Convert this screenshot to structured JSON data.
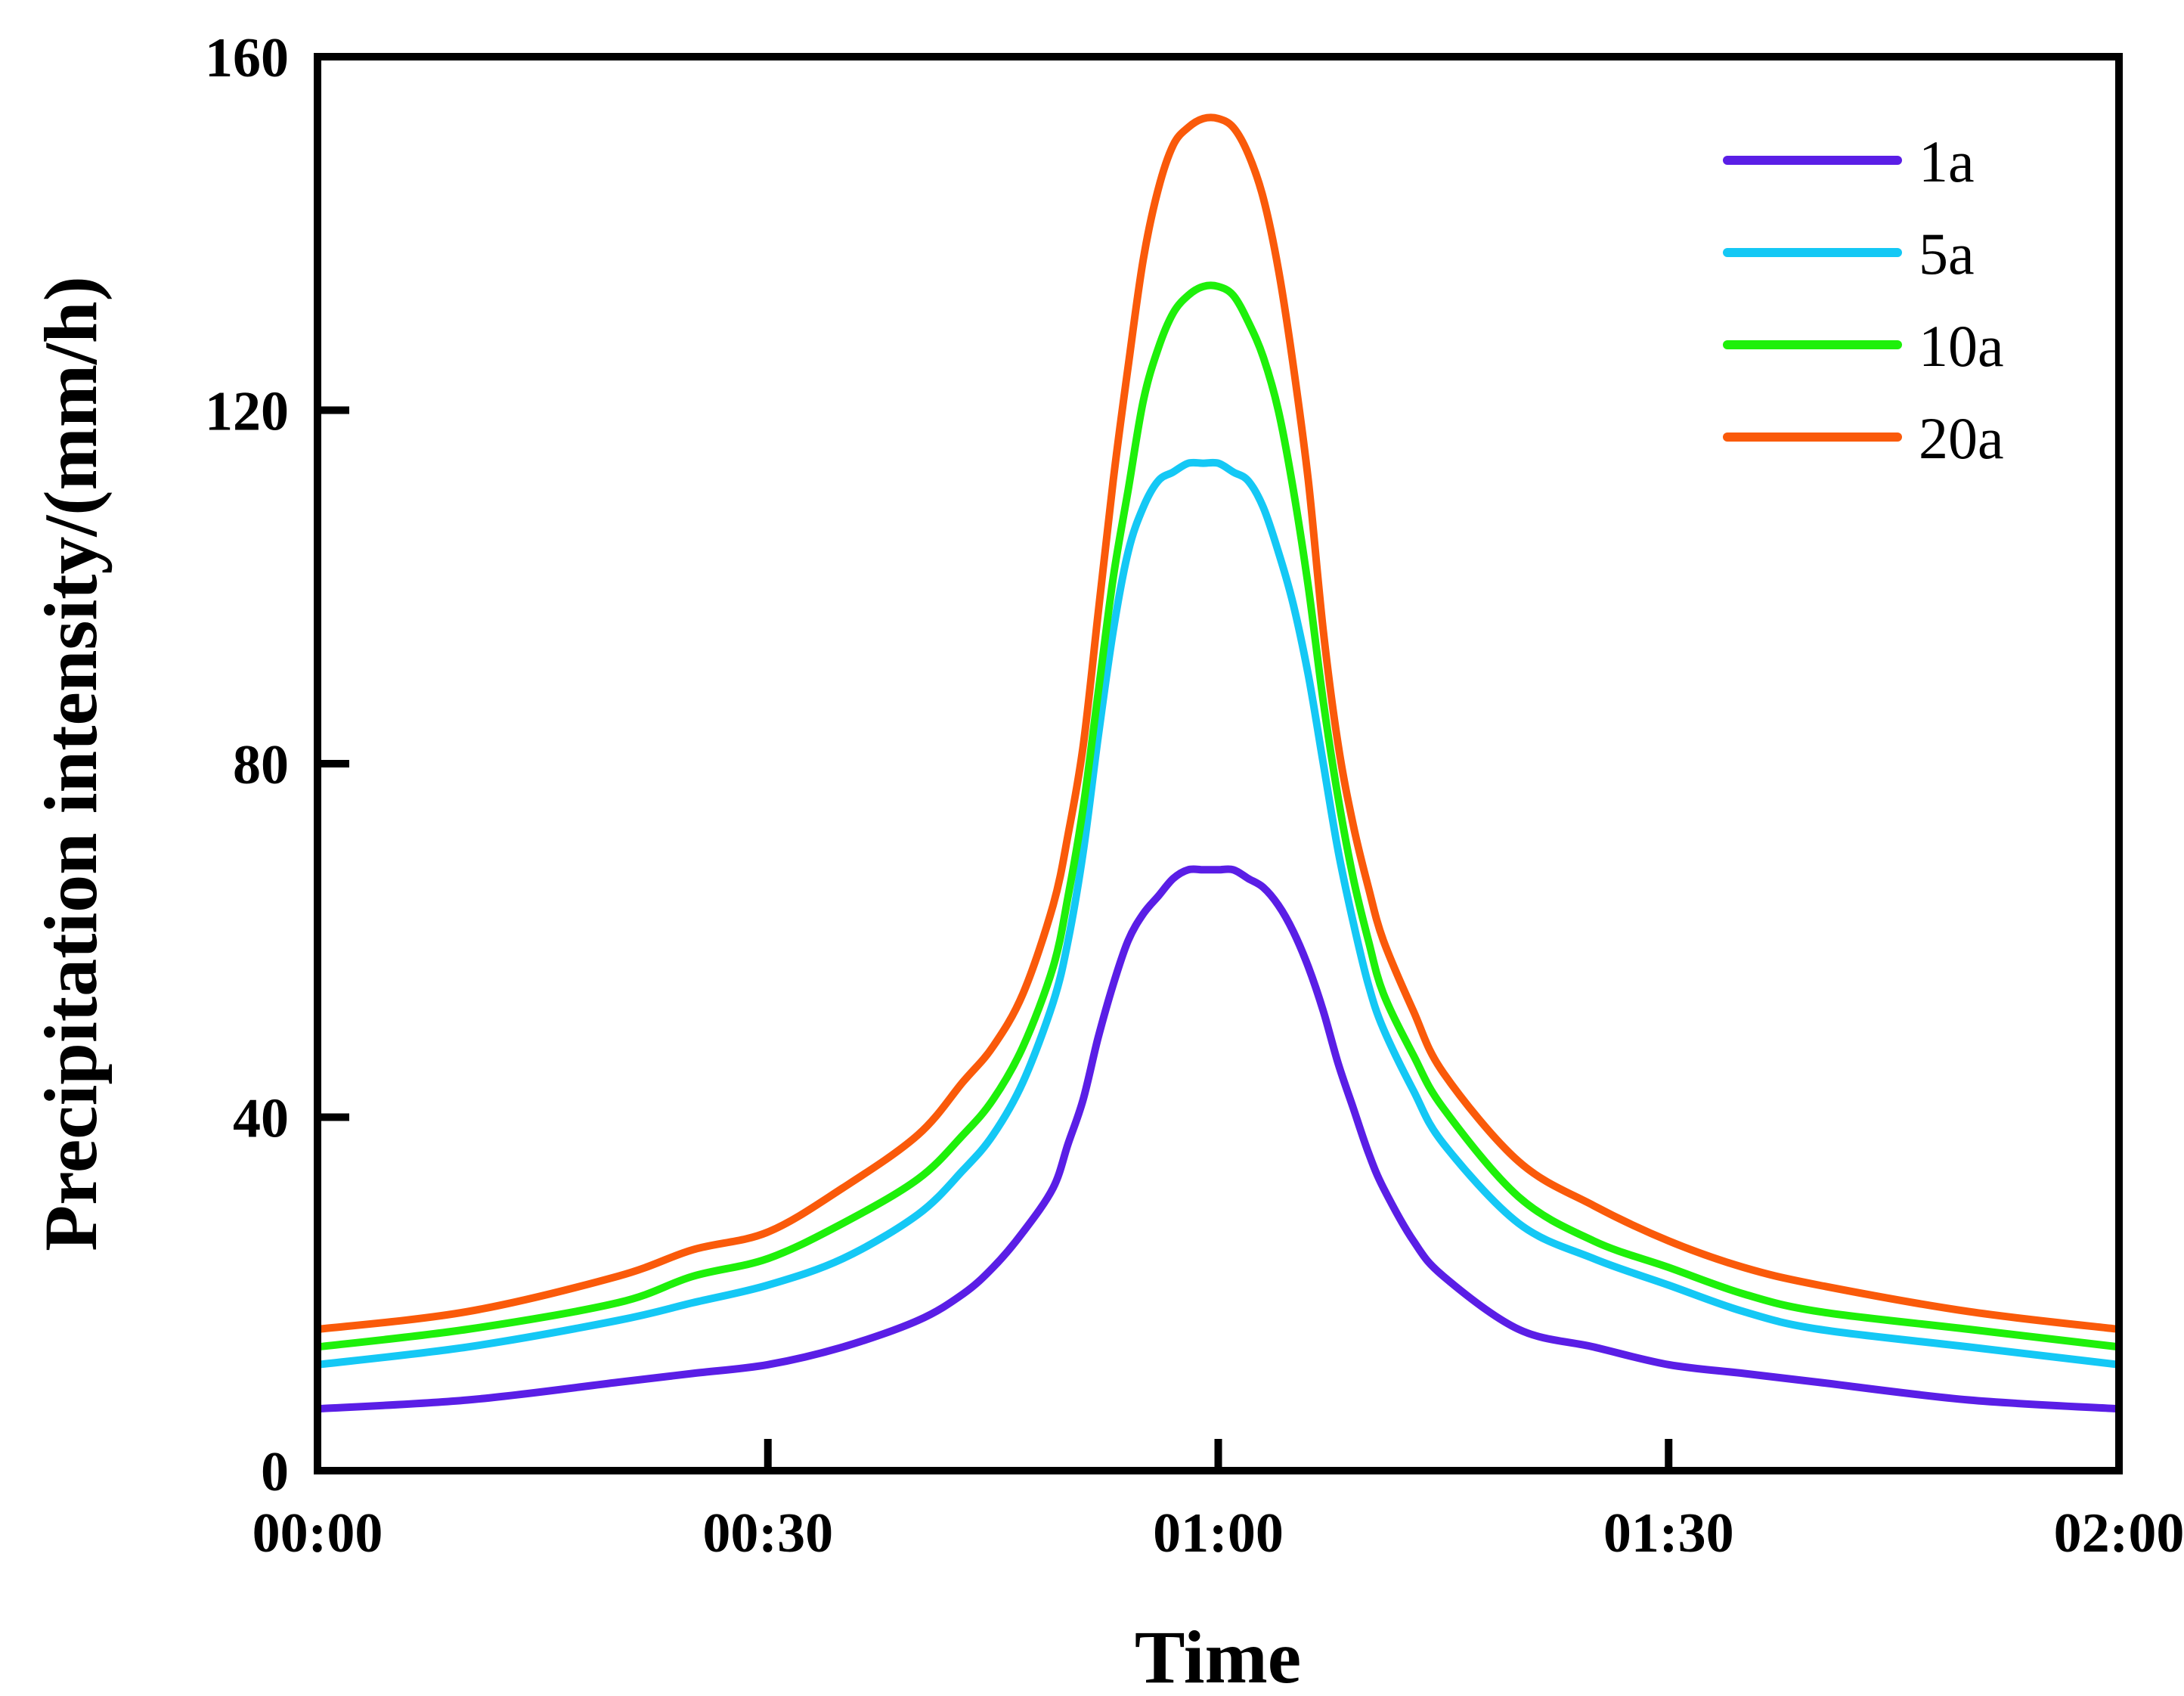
{
  "chart_data": {
    "type": "line",
    "title": "",
    "xlabel": "Time",
    "ylabel": "Precipitation intensity/(mm/h)",
    "xlim": [
      0,
      120
    ],
    "ylim": [
      0,
      160
    ],
    "x_ticks": [
      {
        "value": 0,
        "label": "00:00"
      },
      {
        "value": 30,
        "label": "00:30"
      },
      {
        "value": 60,
        "label": "01:00"
      },
      {
        "value": 90,
        "label": "01:30"
      },
      {
        "value": 120,
        "label": "02:00"
      }
    ],
    "y_ticks": [
      {
        "value": 0,
        "label": "0"
      },
      {
        "value": 40,
        "label": "40"
      },
      {
        "value": 80,
        "label": "80"
      },
      {
        "value": 120,
        "label": "120"
      },
      {
        "value": 160,
        "label": "160"
      }
    ],
    "legend_position": "top-right",
    "x": [
      0,
      10,
      20,
      25,
      30,
      35,
      40,
      43,
      45,
      47,
      49,
      50,
      51,
      52,
      53,
      54,
      55,
      56,
      57,
      58,
      59,
      60,
      61,
      62,
      63,
      64,
      65,
      66,
      67,
      68,
      69,
      70,
      71,
      73,
      75,
      80,
      85,
      90,
      95,
      100,
      110,
      120
    ],
    "series": [
      {
        "name": "1a",
        "color": "#5a1ee6",
        "values": [
          7,
          8,
          10,
          11,
          12,
          14,
          17,
          20,
          23,
          27,
          32,
          37,
          42,
          49,
          55,
          60,
          63,
          65,
          67,
          68,
          68,
          68,
          68,
          67,
          66,
          64,
          61,
          57,
          52,
          46,
          41,
          36,
          32,
          26,
          22,
          16,
          14,
          12,
          11,
          10,
          8,
          7
        ]
      },
      {
        "name": "5a",
        "color": "#14c8f5",
        "values": [
          12,
          14,
          17,
          19,
          21,
          24,
          29,
          34,
          38,
          44,
          53,
          60,
          70,
          83,
          95,
          104,
          109,
          112,
          113,
          114,
          114,
          114,
          113,
          112,
          109,
          104,
          98,
          90,
          80,
          70,
          62,
          55,
          50,
          43,
          37,
          28,
          24,
          21,
          18,
          16,
          14,
          12
        ]
      },
      {
        "name": "10a",
        "color": "#1ef00a",
        "values": [
          14,
          16,
          19,
          22,
          24,
          28,
          33,
          38,
          42,
          48,
          57,
          65,
          75,
          88,
          101,
          111,
          121,
          127,
          131,
          133,
          134,
          134,
          133,
          130,
          126,
          120,
          111,
          100,
          87,
          76,
          67,
          60,
          54,
          47,
          41,
          31,
          26,
          23,
          20,
          18,
          16,
          14
        ]
      },
      {
        "name": "20a",
        "color": "#fa5a0a",
        "values": [
          16,
          18,
          22,
          25,
          27,
          32,
          38,
          44,
          48,
          54,
          64,
          72,
          82,
          97,
          112,
          125,
          137,
          145,
          150,
          152,
          153,
          153,
          152,
          149,
          144,
          136,
          125,
          112,
          95,
          82,
          73,
          66,
          60,
          52,
          45,
          35,
          30,
          26,
          23,
          21,
          18,
          16
        ]
      }
    ]
  }
}
